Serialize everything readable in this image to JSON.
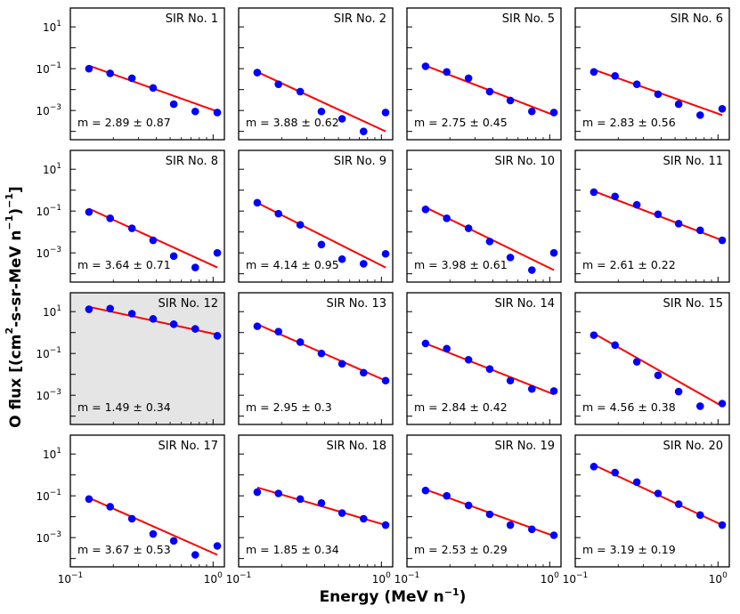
{
  "figure": {
    "ylabel_main": "O flux [(cm",
    "ylabel_sup1": "2",
    "ylabel_mid": "-s-sr-MeV n",
    "ylabel_sup2": "−1",
    "ylabel_end": ")",
    "ylabel_sup3": "−1",
    "ylabel_close": "]",
    "xlabel_main": "Energy (MeV n",
    "xlabel_sup": "−1",
    "xlabel_close": ")",
    "xlim": [
      0.1,
      1.2
    ],
    "ylim": [
      4e-05,
      80
    ],
    "xscale": "log",
    "yscale": "log",
    "y_ticks": [
      {
        "value": 10,
        "base": "10",
        "exp": "1"
      },
      {
        "value": 0.1,
        "base": "10",
        "exp": "−1"
      },
      {
        "value": 0.001,
        "base": "10",
        "exp": "−3"
      }
    ],
    "x_ticks": [
      {
        "value": 0.1,
        "base": "10",
        "exp": "−1"
      },
      {
        "value": 1,
        "base": "10",
        "exp": "0"
      }
    ],
    "highlight_color": "#e5e5e5",
    "point_color": "#0000ff",
    "fit_color": "#ff0000"
  },
  "chart_data": {
    "type": "scatter",
    "energies": [
      0.135,
      0.19,
      0.27,
      0.38,
      0.53,
      0.75,
      1.07
    ],
    "panels": [
      {
        "title": "SIR No. 1",
        "fit": "m = 2.89 ± 0.87",
        "highlight": false,
        "values": [
          0.1,
          0.06,
          0.035,
          0.012,
          0.002,
          0.0009,
          0.0008
        ],
        "fit_line": [
          0.14,
          0.0009
        ]
      },
      {
        "title": "SIR No. 2",
        "fit": "m = 3.88 ± 0.62",
        "highlight": false,
        "values": [
          0.065,
          0.018,
          0.008,
          0.0009,
          0.0004,
          0.0001,
          0.0008
        ],
        "fit_line": [
          0.07,
          0.0001
        ]
      },
      {
        "title": "SIR No. 5",
        "fit": "m = 2.75 ± 0.45",
        "highlight": false,
        "values": [
          0.13,
          0.07,
          0.035,
          0.008,
          0.003,
          0.0009,
          0.0008
        ],
        "fit_line": [
          0.14,
          0.0006
        ]
      },
      {
        "title": "SIR No. 6",
        "fit": "m = 2.83 ± 0.56",
        "highlight": false,
        "values": [
          0.07,
          0.045,
          0.018,
          0.006,
          0.002,
          0.0006,
          0.0012
        ],
        "fit_line": [
          0.09,
          0.0006
        ]
      },
      {
        "title": "SIR No. 8",
        "fit": "m = 3.64 ± 0.71",
        "highlight": false,
        "values": [
          0.09,
          0.045,
          0.015,
          0.004,
          0.0007,
          0.0002,
          0.001
        ],
        "fit_line": [
          0.13,
          0.0002
        ]
      },
      {
        "title": "SIR No. 9",
        "fit": "m = 4.14 ± 0.95",
        "highlight": false,
        "values": [
          0.25,
          0.075,
          0.022,
          0.0025,
          0.0005,
          0.0003,
          0.0009
        ],
        "fit_line": [
          0.25,
          0.0002
        ]
      },
      {
        "title": "SIR No. 10",
        "fit": "m = 3.98 ± 0.61",
        "highlight": false,
        "values": [
          0.12,
          0.045,
          0.015,
          0.0035,
          0.0006,
          0.00015,
          0.001
        ],
        "fit_line": [
          0.15,
          0.00015
        ]
      },
      {
        "title": "SIR No. 11",
        "fit": "m = 2.61 ± 0.22",
        "highlight": false,
        "values": [
          0.8,
          0.5,
          0.2,
          0.07,
          0.025,
          0.012,
          0.004
        ],
        "fit_line": [
          0.9,
          0.004
        ]
      },
      {
        "title": "SIR No. 12",
        "fit": "m = 1.49 ± 0.34",
        "highlight": true,
        "values": [
          13,
          14,
          8,
          4.5,
          2.5,
          1.5,
          0.7
        ],
        "fit_line": [
          17,
          0.8
        ]
      },
      {
        "title": "SIR No. 13",
        "fit": "m = 2.95 ± 0.3",
        "highlight": false,
        "values": [
          2,
          1.1,
          0.35,
          0.1,
          0.032,
          0.012,
          0.005
        ],
        "fit_line": [
          2.5,
          0.005
        ]
      },
      {
        "title": "SIR No. 14",
        "fit": "m = 2.84 ± 0.42",
        "highlight": false,
        "values": [
          0.3,
          0.17,
          0.05,
          0.018,
          0.005,
          0.002,
          0.0016
        ],
        "fit_line": [
          0.3,
          0.0011
        ]
      },
      {
        "title": "SIR No. 15",
        "fit": "m = 4.56 ± 0.38",
        "highlight": false,
        "values": [
          0.75,
          0.25,
          0.04,
          0.009,
          0.0015,
          0.0003,
          0.0004
        ],
        "fit_line": [
          0.9,
          0.0003
        ]
      },
      {
        "title": "SIR No. 17",
        "fit": "m = 3.67 ± 0.53",
        "highlight": false,
        "values": [
          0.07,
          0.03,
          0.008,
          0.0015,
          0.0007,
          0.00015,
          0.0004
        ],
        "fit_line": [
          0.08,
          0.00015
        ]
      },
      {
        "title": "SIR No. 18",
        "fit": "m = 1.85 ± 0.34",
        "highlight": false,
        "values": [
          0.15,
          0.13,
          0.07,
          0.045,
          0.015,
          0.008,
          0.004
        ],
        "fit_line": [
          0.25,
          0.004
        ]
      },
      {
        "title": "SIR No. 19",
        "fit": "m = 2.53 ± 0.29",
        "highlight": false,
        "values": [
          0.18,
          0.1,
          0.035,
          0.013,
          0.004,
          0.0025,
          0.0013
        ],
        "fit_line": [
          0.2,
          0.0012
        ]
      },
      {
        "title": "SIR No. 20",
        "fit": "m = 3.19 ± 0.19",
        "highlight": false,
        "values": [
          2.5,
          1.3,
          0.45,
          0.13,
          0.04,
          0.012,
          0.004
        ],
        "fit_line": [
          3.0,
          0.004
        ]
      }
    ]
  }
}
